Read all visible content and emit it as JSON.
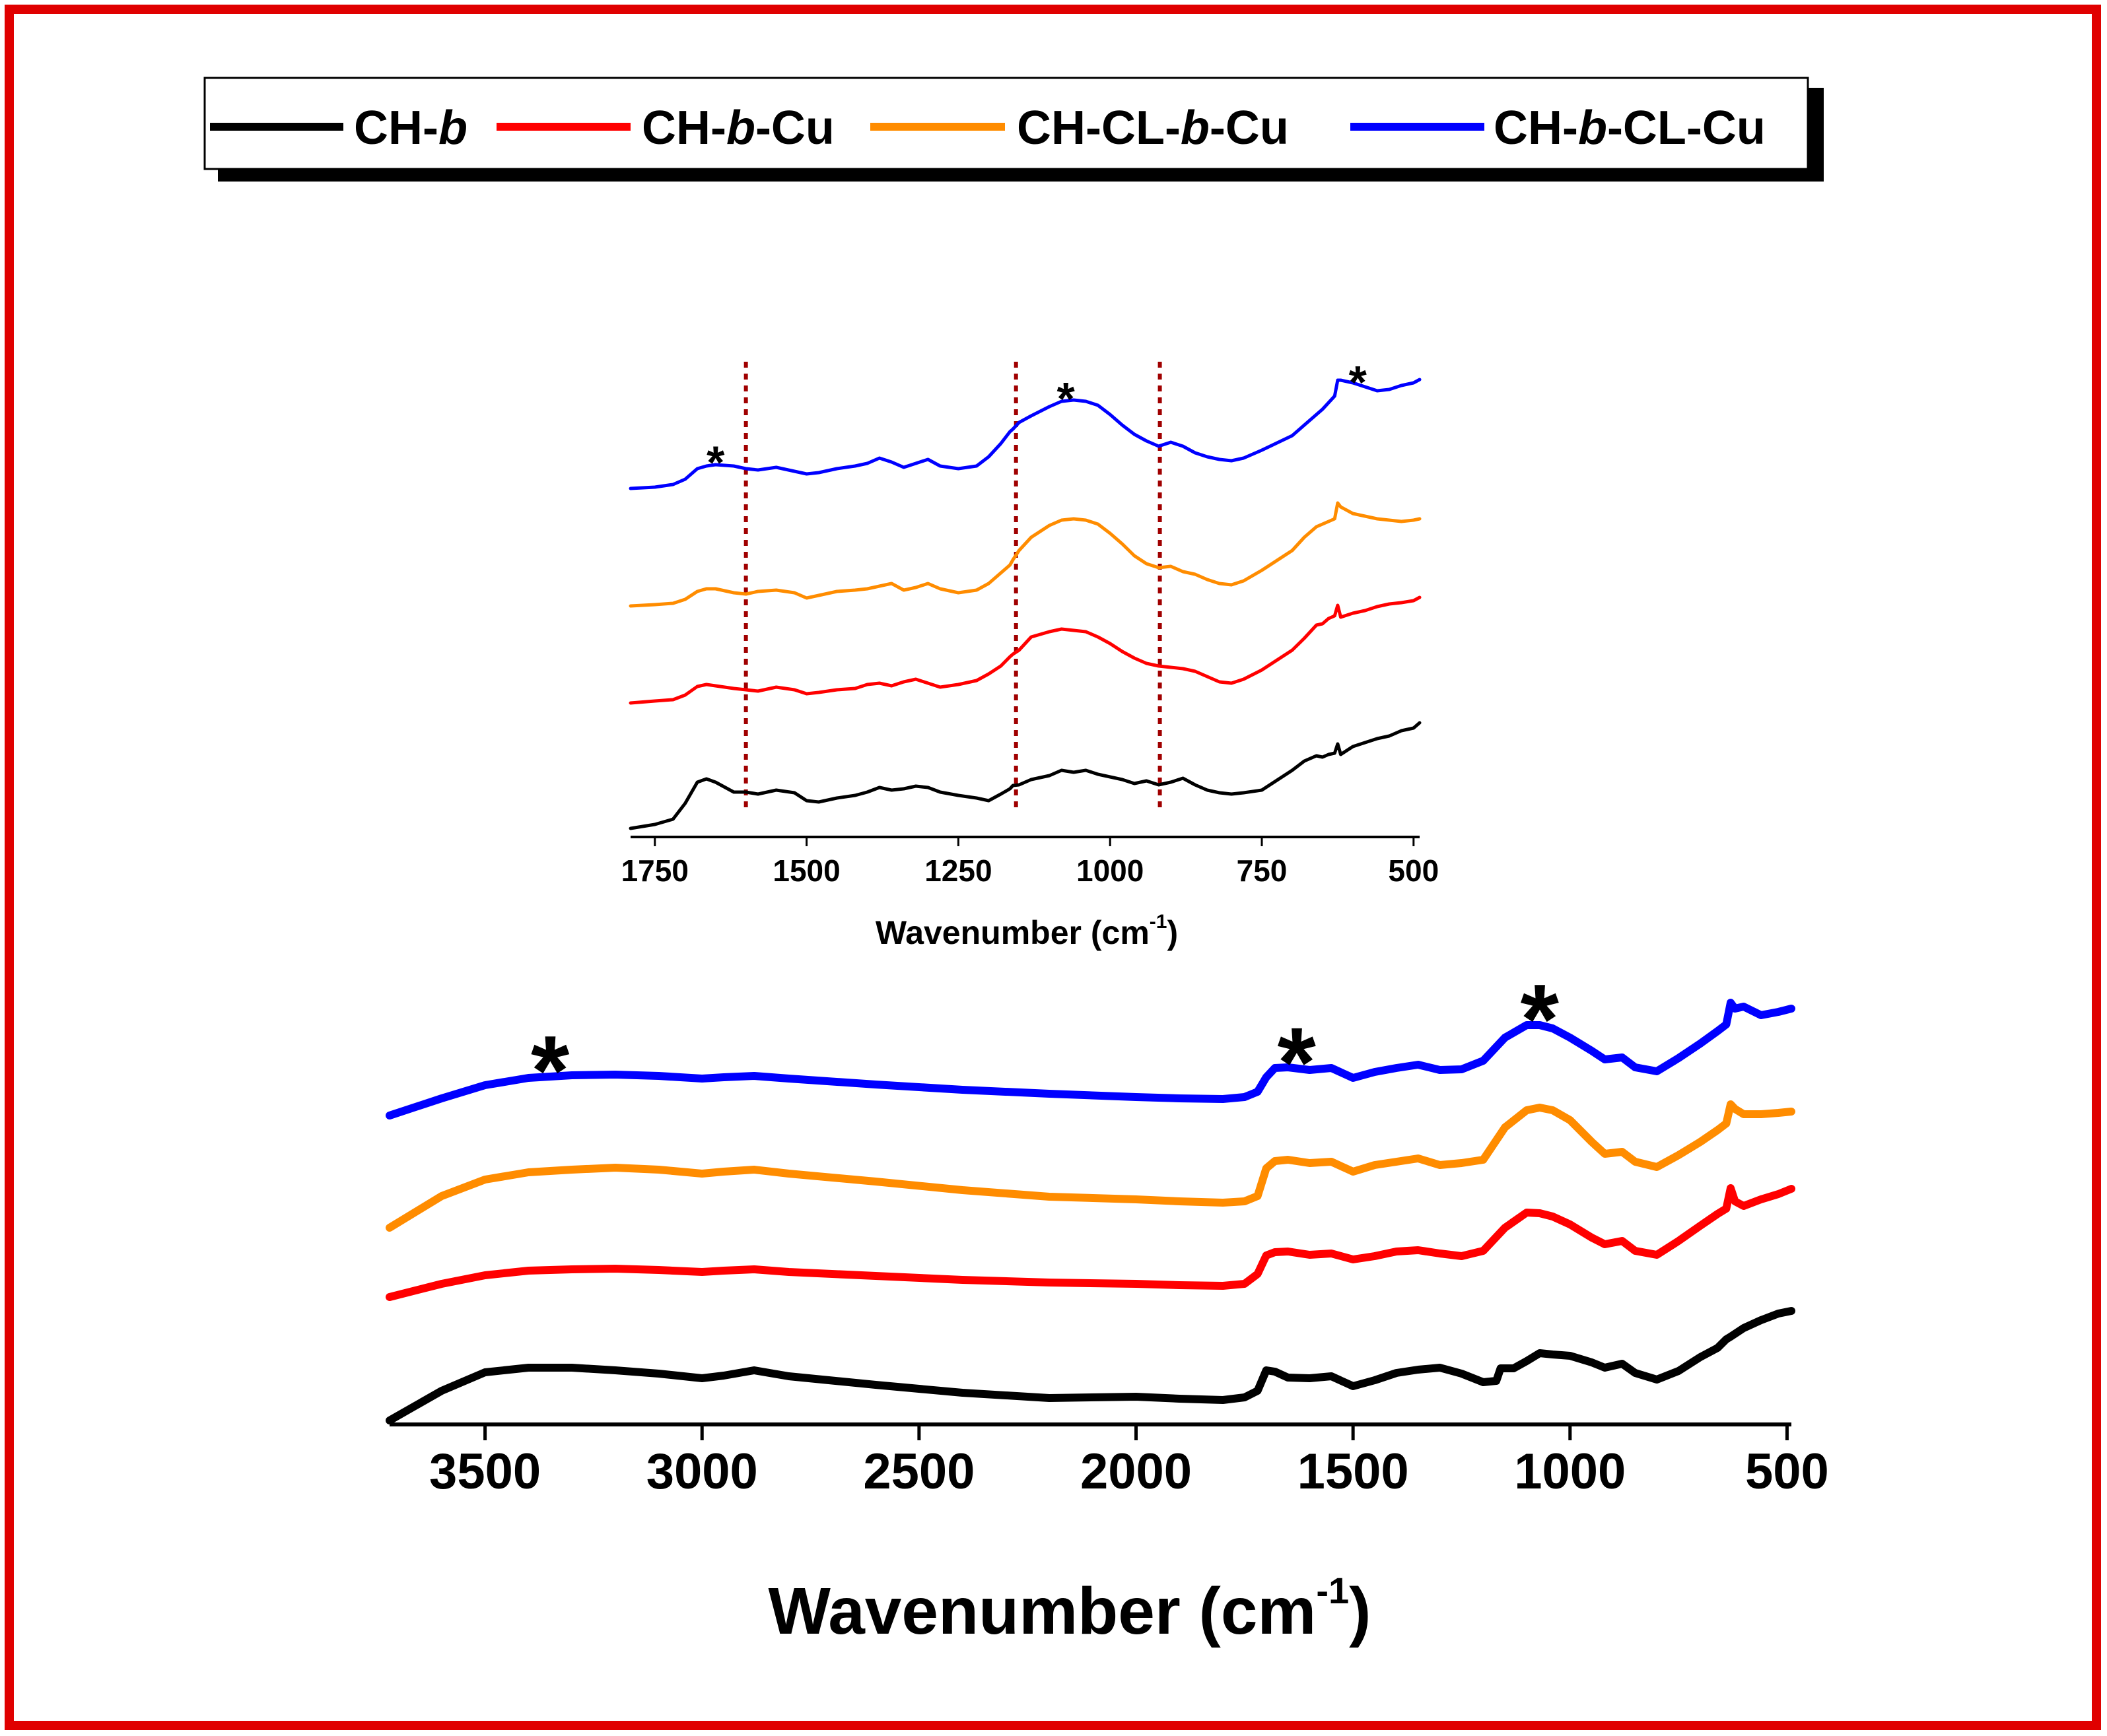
{
  "legend": {
    "items": [
      {
        "prefix": "CH-",
        "italic": "b",
        "suffix": "",
        "color": "#000000"
      },
      {
        "prefix": "CH-",
        "italic": "b",
        "suffix": "-Cu",
        "color": "#ff0000"
      },
      {
        "prefix": "CH-CL-",
        "italic": "b",
        "suffix": "-Cu",
        "color": "#ff8c00"
      },
      {
        "prefix": "CH-",
        "italic": "b",
        "suffix": "-CL-Cu",
        "color": "#0000ff"
      }
    ]
  },
  "colors": {
    "frame": "#e00000",
    "dashed": "#a00000"
  },
  "chart_data": [
    {
      "type": "line",
      "name": "main",
      "xlabel": "Wavenumber (cm",
      "xlabel_sup": "-1",
      "xlabel_tail": ")",
      "ylabel": "",
      "xlim": [
        3720,
        490
      ],
      "xticks": [
        3500,
        3000,
        2500,
        2000,
        1500,
        1000,
        500
      ],
      "annotations": [
        {
          "text": "*",
          "x": 3350,
          "series": "CH-b-CL-Cu"
        },
        {
          "text": "*",
          "x": 1630,
          "series": "CH-b-CL-Cu"
        },
        {
          "text": "*",
          "x": 1070,
          "series": "CH-b-CL-Cu"
        }
      ],
      "series": [
        {
          "name": "CH-b",
          "color": "#000000",
          "x": [
            3720,
            3600,
            3500,
            3400,
            3300,
            3200,
            3100,
            3000,
            2950,
            2880,
            2800,
            2600,
            2400,
            2200,
            2000,
            1900,
            1800,
            1750,
            1720,
            1700,
            1680,
            1650,
            1600,
            1550,
            1500,
            1450,
            1400,
            1350,
            1300,
            1250,
            1200,
            1170,
            1160,
            1130,
            1100,
            1070,
            1040,
            1000,
            950,
            920,
            880,
            850,
            800,
            750,
            700,
            660,
            640,
            630,
            600,
            560,
            520,
            490
          ],
          "y": [
            0,
            45,
            73,
            80,
            80,
            76,
            71,
            64,
            68,
            76,
            67,
            54,
            42,
            34,
            36,
            33,
            31,
            35,
            45,
            76,
            74,
            65,
            64,
            67,
            52,
            61,
            72,
            77,
            80,
            71,
            58,
            60,
            79,
            79,
            90,
            102,
            100,
            98,
            88,
            80,
            86,
            72,
            62,
            75,
            96,
            110,
            123,
            127,
            140,
            152,
            162,
            166
          ]
        },
        {
          "name": "CH-b-Cu",
          "color": "#ff0000",
          "x": [
            3720,
            3600,
            3500,
            3400,
            3300,
            3200,
            3100,
            3000,
            2950,
            2880,
            2800,
            2600,
            2400,
            2200,
            2000,
            1900,
            1800,
            1750,
            1720,
            1700,
            1680,
            1650,
            1600,
            1550,
            1500,
            1450,
            1400,
            1350,
            1300,
            1250,
            1200,
            1150,
            1100,
            1070,
            1040,
            1000,
            950,
            920,
            880,
            850,
            800,
            750,
            700,
            660,
            640,
            630,
            620,
            600,
            560,
            520,
            490
          ],
          "y": [
            0,
            20,
            33,
            40,
            42,
            43,
            41,
            38,
            40,
            42,
            38,
            32,
            26,
            22,
            20,
            18,
            17,
            20,
            35,
            63,
            68,
            69,
            64,
            66,
            57,
            62,
            69,
            71,
            66,
            62,
            70,
            105,
            128,
            127,
            122,
            110,
            90,
            80,
            85,
            70,
            64,
            85,
            108,
            126,
            134,
            165,
            145,
            138,
            148,
            156,
            164
          ]
        },
        {
          "name": "CH-CL-b-Cu",
          "color": "#ff8c00",
          "x": [
            3720,
            3600,
            3500,
            3400,
            3300,
            3200,
            3100,
            3000,
            2950,
            2880,
            2800,
            2600,
            2400,
            2200,
            2000,
            1900,
            1800,
            1750,
            1720,
            1700,
            1680,
            1650,
            1600,
            1550,
            1500,
            1450,
            1400,
            1350,
            1300,
            1250,
            1200,
            1150,
            1100,
            1070,
            1040,
            1000,
            950,
            920,
            880,
            850,
            800,
            750,
            700,
            660,
            640,
            630,
            620,
            600,
            560,
            520,
            490
          ],
          "y": [
            0,
            48,
            73,
            84,
            88,
            91,
            88,
            82,
            85,
            88,
            82,
            70,
            57,
            47,
            43,
            40,
            38,
            40,
            48,
            90,
            101,
            103,
            98,
            100,
            85,
            95,
            100,
            105,
            95,
            98,
            103,
            152,
            178,
            182,
            178,
            163,
            130,
            112,
            115,
            100,
            92,
            110,
            130,
            148,
            158,
            187,
            180,
            172,
            172,
            174,
            176
          ]
        },
        {
          "name": "CH-b-CL-Cu",
          "color": "#0000ff",
          "x": [
            3720,
            3600,
            3500,
            3400,
            3300,
            3200,
            3100,
            3000,
            2950,
            2880,
            2800,
            2600,
            2400,
            2200,
            2000,
            1900,
            1800,
            1750,
            1720,
            1700,
            1680,
            1650,
            1600,
            1550,
            1500,
            1450,
            1400,
            1350,
            1300,
            1250,
            1200,
            1150,
            1100,
            1070,
            1040,
            1000,
            950,
            920,
            880,
            850,
            800,
            750,
            700,
            660,
            640,
            630,
            620,
            600,
            560,
            520,
            490
          ],
          "y": [
            0,
            26,
            46,
            57,
            61,
            62,
            60,
            56,
            58,
            60,
            56,
            47,
            39,
            33,
            28,
            26,
            25,
            28,
            36,
            58,
            72,
            73,
            69,
            72,
            57,
            66,
            72,
            77,
            69,
            70,
            83,
            118,
            137,
            137,
            132,
            118,
            98,
            85,
            88,
            73,
            67,
            87,
            109,
            128,
            138,
            171,
            162,
            165,
            152,
            157,
            162
          ]
        }
      ]
    },
    {
      "type": "line",
      "name": "inset",
      "xlabel": "Wavenumber (cm",
      "xlabel_sup": "-1",
      "xlabel_tail": ")",
      "ylabel": "",
      "xlim": [
        1790,
        490
      ],
      "xticks": [
        1750,
        1500,
        1250,
        1000,
        750,
        500
      ],
      "reference_lines": [
        1600,
        1155,
        918
      ],
      "annotations": [
        {
          "text": "*",
          "x": 1650,
          "series": "CH-b-CL-Cu"
        },
        {
          "text": "*",
          "x": 1073,
          "series": "CH-b-CL-Cu"
        },
        {
          "text": "*",
          "x": 592,
          "series": "CH-b-CL-Cu"
        }
      ],
      "series": [
        {
          "name": "CH-b",
          "color": "#000000",
          "x": [
            1790,
            1750,
            1720,
            1700,
            1680,
            1665,
            1650,
            1620,
            1600,
            1580,
            1550,
            1520,
            1500,
            1480,
            1450,
            1420,
            1400,
            1380,
            1360,
            1340,
            1320,
            1300,
            1280,
            1250,
            1220,
            1200,
            1180,
            1165,
            1160,
            1150,
            1130,
            1100,
            1080,
            1060,
            1040,
            1020,
            1000,
            980,
            960,
            940,
            920,
            900,
            880,
            860,
            840,
            820,
            800,
            780,
            750,
            700,
            680,
            660,
            650,
            640,
            630,
            625,
            620,
            600,
            580,
            560,
            540,
            520,
            500,
            490
          ],
          "y": [
            0,
            6,
            14,
            38,
            70,
            75,
            70,
            55,
            55,
            52,
            58,
            54,
            42,
            40,
            46,
            50,
            55,
            62,
            58,
            60,
            64,
            62,
            55,
            50,
            46,
            42,
            52,
            60,
            65,
            66,
            74,
            80,
            88,
            85,
            88,
            82,
            78,
            74,
            68,
            72,
            66,
            70,
            76,
            66,
            58,
            54,
            52,
            54,
            58,
            88,
            102,
            110,
            108,
            112,
            114,
            128,
            112,
            124,
            130,
            136,
            140,
            148,
            152,
            160
          ]
        },
        {
          "name": "CH-b-Cu",
          "color": "#ff0000",
          "x": [
            1790,
            1750,
            1720,
            1700,
            1680,
            1665,
            1650,
            1620,
            1600,
            1580,
            1550,
            1520,
            1500,
            1480,
            1450,
            1420,
            1400,
            1380,
            1360,
            1340,
            1320,
            1300,
            1280,
            1250,
            1220,
            1200,
            1180,
            1165,
            1160,
            1150,
            1130,
            1100,
            1080,
            1060,
            1040,
            1020,
            1000,
            980,
            960,
            940,
            920,
            900,
            880,
            860,
            840,
            820,
            800,
            780,
            750,
            700,
            680,
            660,
            650,
            640,
            630,
            625,
            620,
            600,
            580,
            560,
            540,
            520,
            500,
            490
          ],
          "y": [
            0,
            3,
            5,
            12,
            25,
            28,
            26,
            22,
            20,
            18,
            24,
            20,
            14,
            16,
            20,
            22,
            28,
            30,
            26,
            32,
            36,
            30,
            24,
            28,
            34,
            44,
            56,
            70,
            74,
            80,
            100,
            108,
            112,
            110,
            108,
            100,
            90,
            78,
            68,
            60,
            56,
            54,
            52,
            48,
            40,
            32,
            30,
            36,
            50,
            80,
            98,
            118,
            120,
            128,
            132,
            148,
            130,
            136,
            140,
            146,
            150,
            152,
            155,
            160
          ]
        },
        {
          "name": "CH-CL-b-Cu",
          "color": "#ff8c00",
          "x": [
            1790,
            1750,
            1720,
            1700,
            1680,
            1665,
            1650,
            1620,
            1600,
            1580,
            1550,
            1520,
            1500,
            1480,
            1450,
            1420,
            1400,
            1380,
            1360,
            1340,
            1320,
            1300,
            1280,
            1250,
            1220,
            1200,
            1180,
            1165,
            1160,
            1150,
            1130,
            1100,
            1080,
            1060,
            1040,
            1020,
            1000,
            980,
            960,
            940,
            920,
            900,
            880,
            860,
            840,
            820,
            800,
            780,
            750,
            700,
            680,
            660,
            650,
            640,
            630,
            625,
            620,
            600,
            580,
            560,
            540,
            520,
            500,
            490
          ],
          "y": [
            0,
            2,
            4,
            10,
            22,
            26,
            26,
            20,
            18,
            22,
            24,
            20,
            12,
            16,
            22,
            24,
            26,
            30,
            34,
            24,
            28,
            34,
            26,
            20,
            24,
            34,
            50,
            62,
            70,
            84,
            104,
            122,
            130,
            132,
            130,
            124,
            110,
            94,
            76,
            64,
            58,
            60,
            52,
            48,
            40,
            34,
            32,
            38,
            54,
            84,
            104,
            120,
            124,
            128,
            132,
            156,
            150,
            140,
            136,
            132,
            130,
            128,
            130,
            132
          ]
        },
        {
          "name": "CH-b-CL-Cu",
          "color": "#0000ff",
          "x": [
            1790,
            1750,
            1720,
            1700,
            1680,
            1665,
            1650,
            1620,
            1600,
            1580,
            1550,
            1520,
            1500,
            1480,
            1450,
            1420,
            1400,
            1380,
            1360,
            1340,
            1320,
            1300,
            1280,
            1250,
            1220,
            1200,
            1180,
            1165,
            1160,
            1150,
            1130,
            1100,
            1080,
            1060,
            1040,
            1020,
            1000,
            980,
            960,
            940,
            920,
            900,
            880,
            860,
            840,
            820,
            800,
            780,
            750,
            700,
            680,
            660,
            650,
            640,
            630,
            625,
            620,
            600,
            580,
            560,
            540,
            520,
            500,
            490
          ],
          "y": [
            0,
            2,
            6,
            14,
            30,
            34,
            36,
            34,
            30,
            28,
            32,
            26,
            22,
            24,
            30,
            34,
            38,
            46,
            40,
            32,
            38,
            44,
            34,
            30,
            34,
            48,
            68,
            86,
            90,
            100,
            110,
            124,
            132,
            134,
            132,
            126,
            112,
            96,
            82,
            72,
            64,
            70,
            64,
            54,
            48,
            44,
            42,
            46,
            58,
            80,
            96,
            112,
            120,
            130,
            140,
            164,
            164,
            160,
            154,
            148,
            150,
            156,
            160,
            165
          ]
        }
      ]
    }
  ]
}
